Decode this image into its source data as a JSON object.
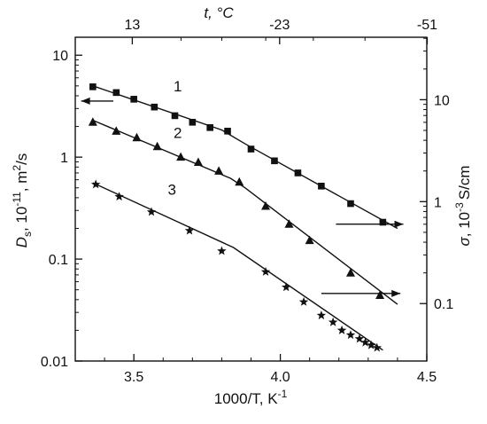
{
  "chart_data": {
    "type": "scatter",
    "x_axis_bottom": {
      "title": "1000/T, K",
      "title_sup": "-1",
      "range": [
        3.3,
        4.5
      ],
      "ticks": [
        3.5,
        4.0,
        4.5
      ],
      "tick_labels": [
        "3.5",
        "4.0",
        "4.5"
      ]
    },
    "x_axis_top": {
      "title": "t, °C",
      "ticks_celsius": [
        13,
        -23,
        -51
      ],
      "tick_labels": [
        "13",
        "-23",
        "-51"
      ]
    },
    "y_axis_left": {
      "title_main": "D",
      "title_sub": "s",
      "title_rest": ", 10",
      "title_exp": "-11",
      "title_tail": ", m",
      "title_exp2": "2",
      "title_end": "/s",
      "scale": "log",
      "range": [
        0.01,
        15
      ],
      "ticks": [
        0.01,
        0.1,
        1,
        10
      ],
      "tick_labels": [
        "0.01",
        "0.1",
        "1",
        "10"
      ]
    },
    "y_axis_right": {
      "title_sigma": "σ",
      "title_rest": ", 10",
      "title_exp": "-3",
      "title_tail": "S/cm",
      "scale": "log",
      "ticks": [
        0.1,
        1,
        10
      ],
      "tick_labels": [
        "0.1",
        "1",
        "10"
      ]
    },
    "series": [
      {
        "label": "1",
        "marker": "square",
        "points": [
          [
            3.36,
            4.9
          ],
          [
            3.44,
            4.3
          ],
          [
            3.5,
            3.7
          ],
          [
            3.57,
            3.1
          ],
          [
            3.64,
            2.55
          ],
          [
            3.7,
            2.2
          ],
          [
            3.76,
            1.95
          ],
          [
            3.82,
            1.8
          ],
          [
            3.9,
            1.2
          ],
          [
            3.98,
            0.92
          ],
          [
            4.06,
            0.7
          ],
          [
            4.14,
            0.52
          ],
          [
            4.24,
            0.35
          ],
          [
            4.35,
            0.23
          ]
        ],
        "line": [
          [
            3.36,
            5.0
          ],
          [
            3.8,
            1.85
          ],
          [
            3.88,
            1.35
          ],
          [
            4.4,
            0.2
          ]
        ]
      },
      {
        "label": "2",
        "marker": "triangle",
        "points": [
          [
            3.36,
            2.2
          ],
          [
            3.44,
            1.8
          ],
          [
            3.51,
            1.55
          ],
          [
            3.58,
            1.27
          ],
          [
            3.66,
            1.0
          ],
          [
            3.72,
            0.89
          ],
          [
            3.79,
            0.73
          ],
          [
            3.86,
            0.57
          ],
          [
            3.95,
            0.33
          ],
          [
            4.03,
            0.22
          ],
          [
            4.1,
            0.152
          ],
          [
            4.24,
            0.073
          ],
          [
            4.34,
            0.044
          ]
        ],
        "line": [
          [
            3.36,
            2.3
          ],
          [
            3.83,
            0.62
          ],
          [
            3.88,
            0.5
          ],
          [
            4.4,
            0.036
          ]
        ]
      },
      {
        "label": "3",
        "marker": "star",
        "points": [
          [
            3.37,
            0.54
          ],
          [
            3.45,
            0.41
          ],
          [
            3.56,
            0.29
          ],
          [
            3.69,
            0.19
          ],
          [
            3.8,
            0.12
          ],
          [
            3.95,
            0.075
          ],
          [
            4.02,
            0.053
          ],
          [
            4.08,
            0.038
          ],
          [
            4.14,
            0.028
          ],
          [
            4.18,
            0.024
          ],
          [
            4.21,
            0.02
          ],
          [
            4.24,
            0.018
          ],
          [
            4.27,
            0.0165
          ],
          [
            4.29,
            0.0152
          ],
          [
            4.31,
            0.0143
          ],
          [
            4.33,
            0.0135
          ]
        ],
        "line": [
          [
            3.36,
            0.56
          ],
          [
            3.84,
            0.13
          ],
          [
            4.35,
            0.0128
          ]
        ]
      }
    ],
    "arrows": [
      {
        "for": "1",
        "direction": "left",
        "from": [
          3.43,
          3.55
        ],
        "to": [
          3.32,
          3.55
        ]
      },
      {
        "for": "2",
        "direction": "right",
        "from": [
          4.19,
          0.22
        ],
        "to": [
          4.42,
          0.22
        ]
      },
      {
        "for": "3",
        "direction": "right",
        "from": [
          4.14,
          0.046
        ],
        "to": [
          4.41,
          0.046
        ]
      }
    ],
    "curve_labels": [
      {
        "text": "1",
        "x": 3.65,
        "y": 4.4
      },
      {
        "text": "2",
        "x": 3.65,
        "y": 1.55
      },
      {
        "text": "3",
        "x": 3.63,
        "y": 0.43
      }
    ]
  }
}
